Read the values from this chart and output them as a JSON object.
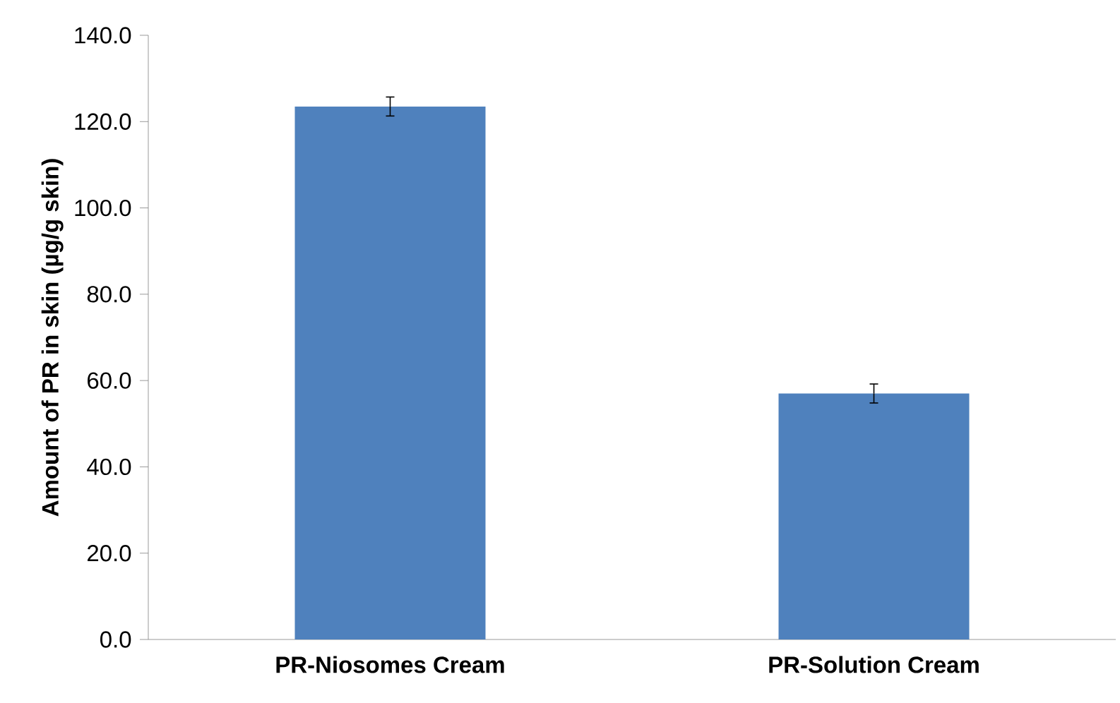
{
  "chart_data": {
    "type": "bar",
    "ylabel": "Amount of PR in skin (µg/g skin)",
    "categories": [
      "PR-Niosomes Cream",
      "PR-Solution Cream"
    ],
    "values": [
      123.5,
      57.0
    ],
    "errors": [
      2.2,
      2.2
    ],
    "color": "#4f81bd",
    "ylim": [
      0,
      140
    ],
    "yticks": [
      {
        "value": 0,
        "label": "0.0"
      },
      {
        "value": 20,
        "label": "20.0"
      },
      {
        "value": 40,
        "label": "40.0"
      },
      {
        "value": 60,
        "label": "60.0"
      },
      {
        "value": 80,
        "label": "80.0"
      },
      {
        "value": 100,
        "label": "100.0"
      },
      {
        "value": 120,
        "label": "120.0"
      },
      {
        "value": 140,
        "label": "140.0"
      }
    ],
    "grid": false
  }
}
